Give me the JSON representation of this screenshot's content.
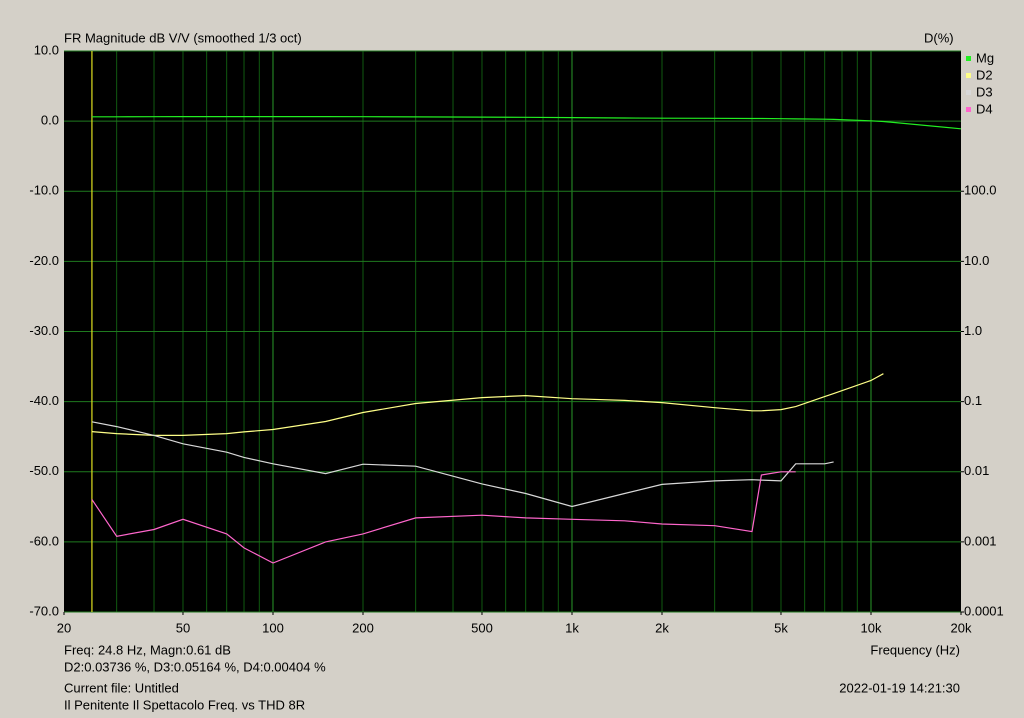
{
  "chart_data": {
    "type": "line",
    "title": "FR Magnitude dB V/V (smoothed 1/3 oct)",
    "y2_label": "D(%)",
    "x_label": "Frequency (Hz)",
    "x_scale": "log",
    "y2_scale": "log",
    "grid": true,
    "legend": "right",
    "x": [
      24.8,
      30,
      40,
      50,
      70,
      80,
      100,
      150,
      200,
      300,
      500,
      700,
      1000,
      1500,
      2000,
      3000,
      4000,
      4300,
      5000,
      5600,
      7000,
      7500,
      10000,
      11000,
      20000
    ],
    "xlim": [
      20,
      20000
    ],
    "xticks": [
      20,
      50,
      100,
      200,
      500,
      {
        "value": 1000,
        "label": "1k"
      },
      {
        "value": 2000,
        "label": "2k"
      },
      {
        "value": 5000,
        "label": "5k"
      },
      {
        "value": 10000,
        "label": "10k"
      },
      {
        "value": 20000,
        "label": "20k"
      }
    ],
    "ylim": [
      -70,
      10
    ],
    "yticks": [
      {
        "value": 10,
        "label": "10.0"
      },
      {
        "value": 0,
        "label": "0.0"
      },
      {
        "value": -10,
        "label": "-10.0"
      },
      {
        "value": -20,
        "label": "-20.0"
      },
      {
        "value": -30,
        "label": "-30.0"
      },
      {
        "value": -40,
        "label": "-40.0"
      },
      {
        "value": -50,
        "label": "-50.0"
      },
      {
        "value": -60,
        "label": "-60.0"
      },
      {
        "value": -70,
        "label": "-70.0"
      }
    ],
    "y2lim": [
      0.0001,
      10000
    ],
    "y2ticks": [
      {
        "value": 100,
        "label": "100.0"
      },
      {
        "value": 10,
        "label": "10.0"
      },
      {
        "value": 1,
        "label": "1.0"
      },
      0.1,
      0.01,
      0.001,
      0.0001
    ],
    "cursor_x": 24.8,
    "series": [
      {
        "name": "Mg",
        "color": "#22ee22",
        "values": [
          0.61,
          0.62,
          0.63,
          0.64,
          0.65,
          0.65,
          0.65,
          0.64,
          0.63,
          0.6,
          0.58,
          0.55,
          0.5,
          0.45,
          0.42,
          0.4,
          0.38,
          0.37,
          0.35,
          0.32,
          0.28,
          0.25,
          0.05,
          -0.05,
          -1.1
        ]
      },
      {
        "name": "D2",
        "color": "#ffff88",
        "axis": "y2",
        "values": [
          0.03736,
          0.035,
          0.033,
          0.033,
          0.035,
          0.037,
          0.04,
          0.052,
          0.07,
          0.094,
          0.114,
          0.122,
          0.11,
          0.104,
          0.097,
          0.082,
          0.074,
          0.074,
          0.077,
          0.085,
          0.118,
          0.13,
          0.2,
          0.25,
          null
        ]
      },
      {
        "name": "D3",
        "color": "#d8d8d8",
        "axis": "y2",
        "values": [
          0.05164,
          0.044,
          0.033,
          0.025,
          0.019,
          0.016,
          0.013,
          0.0094,
          0.0128,
          0.012,
          0.0067,
          0.0049,
          0.0032,
          0.0049,
          0.0066,
          0.0074,
          0.0077,
          0.0076,
          0.0074,
          0.013,
          0.013,
          0.0138,
          null,
          null,
          null
        ]
      },
      {
        "name": "D4",
        "color": "#ff66cc",
        "axis": "y2",
        "values": [
          0.00404,
          0.0012,
          0.0015,
          0.0021,
          0.0013,
          0.00082,
          0.0005,
          0.001,
          0.0013,
          0.0022,
          0.0024,
          0.0022,
          0.0021,
          0.002,
          0.0018,
          0.0017,
          0.0014,
          0.009,
          0.01,
          0.01,
          null,
          null,
          null,
          null,
          null
        ]
      }
    ],
    "info": [
      "Freq: 24.8 Hz, Magn:0.61 dB",
      "D2:0.03736 %, D3:0.05164 %, D4:0.00404 %",
      "Current file: Untitled",
      "Il Penitente Il Spettacolo Freq. vs THD 8R"
    ],
    "timestamp": "2022-01-19  14:21:30"
  }
}
